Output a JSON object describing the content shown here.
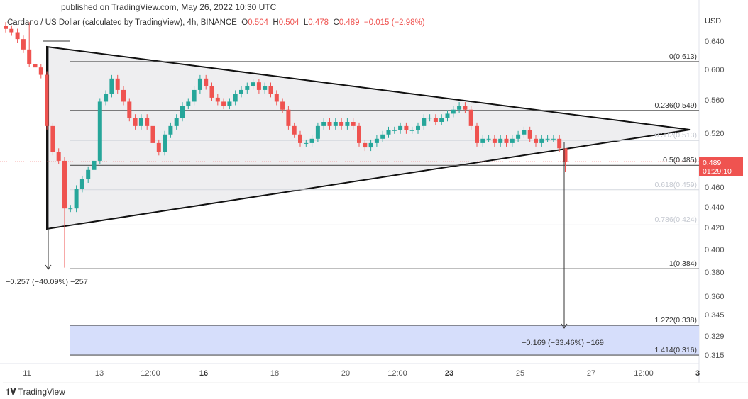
{
  "header": {
    "published": "published on TradingView.com, May 26, 2022 10:30 UTC"
  },
  "legend": {
    "symbol": "Cardano / US Dollar (calculated by TradingView), 4h, BINANCE",
    "o_label": "O",
    "o": "0.504",
    "h_label": "H",
    "h": "0.504",
    "l_label": "L",
    "l": "0.478",
    "c_label": "C",
    "c": "0.489",
    "change": "−0.015 (−2.98%)"
  },
  "axis": {
    "currency": "USD",
    "price_ticks": [
      "0.640",
      "0.600",
      "0.560",
      "0.520",
      "0.460",
      "0.440",
      "0.420",
      "0.400",
      "0.380",
      "0.360",
      "0.345",
      "0.329",
      "0.315"
    ],
    "time_ticks": [
      {
        "l": "11",
        "b": false
      },
      {
        "l": "13",
        "b": false
      },
      {
        "l": "12:00",
        "b": false
      },
      {
        "l": "16",
        "b": true
      },
      {
        "l": "18",
        "b": false
      },
      {
        "l": "20",
        "b": false
      },
      {
        "l": "12:00",
        "b": false
      },
      {
        "l": "23",
        "b": true
      },
      {
        "l": "25",
        "b": false
      },
      {
        "l": "27",
        "b": false
      },
      {
        "l": "12:00",
        "b": false
      },
      {
        "l": "3",
        "b": true
      }
    ]
  },
  "price_tag": {
    "price": "0.489",
    "countdown": "01:29:10"
  },
  "fib_levels": [
    {
      "label": "0(0.613)",
      "price": 0.613,
      "faint": false
    },
    {
      "label": "0.236(0.549)",
      "price": 0.549,
      "faint": false
    },
    {
      "label": "0.382(0.513)",
      "price": 0.513,
      "faint": true
    },
    {
      "label": "0.5(0.485)",
      "price": 0.485,
      "faint": false
    },
    {
      "label": "0.618(0.459)",
      "price": 0.459,
      "faint": true
    },
    {
      "label": "0.786(0.424)",
      "price": 0.424,
      "faint": true
    },
    {
      "label": "1(0.384)",
      "price": 0.384,
      "faint": false
    },
    {
      "label": "1.272(0.338)",
      "price": 0.338,
      "faint": false
    },
    {
      "label": "1.414(0.316)",
      "price": 0.316,
      "faint": false
    }
  ],
  "measurements": {
    "left": "−0.257 (−40.09%) −257",
    "right": "−0.169 (−33.46%) −169"
  },
  "colors": {
    "up": "#26a69a",
    "down": "#ef5350",
    "target_zone": "#d6defb",
    "triangle_fill": "#eeeef0"
  },
  "chart_data": {
    "type": "candlestick",
    "timeframe": "4h",
    "scale": "log",
    "closes": [
      0.66,
      0.655,
      0.645,
      0.63,
      0.61,
      0.605,
      0.595,
      0.53,
      0.5,
      0.49,
      0.44,
      0.44,
      0.46,
      0.47,
      0.48,
      0.49,
      0.56,
      0.57,
      0.59,
      0.575,
      0.56,
      0.54,
      0.53,
      0.54,
      0.53,
      0.51,
      0.5,
      0.52,
      0.53,
      0.54,
      0.555,
      0.56,
      0.575,
      0.59,
      0.58,
      0.565,
      0.56,
      0.555,
      0.56,
      0.57,
      0.575,
      0.58,
      0.585,
      0.575,
      0.58,
      0.57,
      0.56,
      0.55,
      0.53,
      0.52,
      0.51,
      0.51,
      0.515,
      0.53,
      0.535,
      0.53,
      0.535,
      0.53,
      0.535,
      0.53,
      0.51,
      0.505,
      0.51,
      0.515,
      0.52,
      0.525,
      0.525,
      0.53,
      0.525,
      0.525,
      0.53,
      0.54,
      0.54,
      0.535,
      0.54,
      0.545,
      0.55,
      0.555,
      0.55,
      0.53,
      0.51,
      0.515,
      0.515,
      0.51,
      0.515,
      0.51,
      0.515,
      0.52,
      0.525,
      0.515,
      0.51,
      0.515,
      0.515,
      0.515,
      0.504,
      0.489
    ],
    "last": {
      "open": 0.504,
      "high": 0.504,
      "low": 0.478,
      "close": 0.489
    }
  },
  "footer": {
    "brand": "TradingView"
  }
}
